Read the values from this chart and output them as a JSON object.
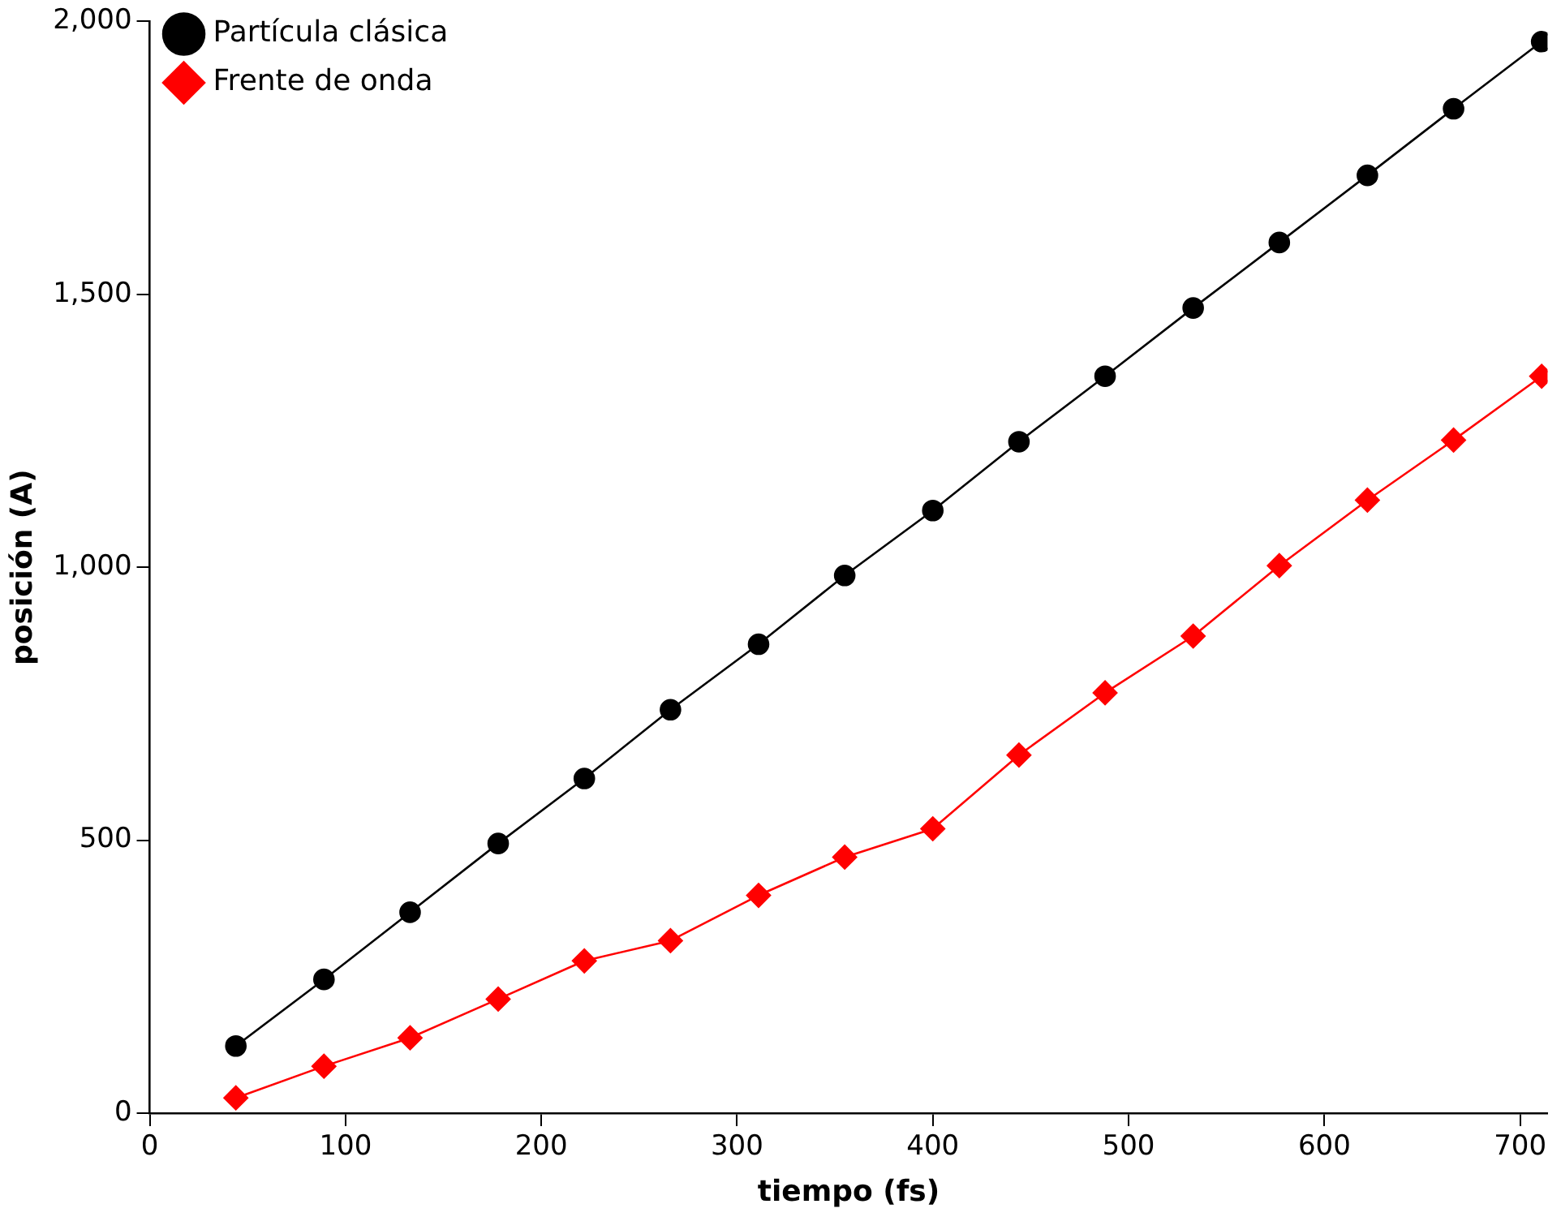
{
  "chart_data": {
    "type": "line",
    "xlabel": "tiempo (fs)",
    "ylabel": "posición (A)",
    "xlim": [
      0,
      714
    ],
    "xticks": [
      0,
      100,
      200,
      300,
      400,
      500,
      600,
      700
    ],
    "ylim": [
      0,
      2000
    ],
    "yticks": [
      0,
      500,
      {
        "value": 1000,
        "label": "1,000"
      },
      {
        "value": 1500,
        "label": "1,500"
      },
      {
        "value": 2000,
        "label": "2,000"
      }
    ],
    "x": [
      44,
      89,
      133,
      178,
      222,
      266,
      311,
      355,
      400,
      444,
      488,
      533,
      577,
      622,
      666,
      711
    ],
    "series": [
      {
        "name": "Partícula clásica",
        "color": "#000000",
        "marker": "circle",
        "values": [
          123,
          245,
          368,
          494,
          613,
          739,
          859,
          985,
          1104,
          1230,
          1350,
          1475,
          1595,
          1718,
          1840,
          1963
        ]
      },
      {
        "name": "Frente de onda",
        "color": "#ff0000",
        "marker": "diamond",
        "values": [
          28,
          86,
          138,
          209,
          279,
          316,
          399,
          469,
          521,
          656,
          770,
          874,
          1003,
          1123,
          1233,
          1350
        ]
      }
    ],
    "grid": false,
    "legend": "top left",
    "line_style": "solid"
  }
}
